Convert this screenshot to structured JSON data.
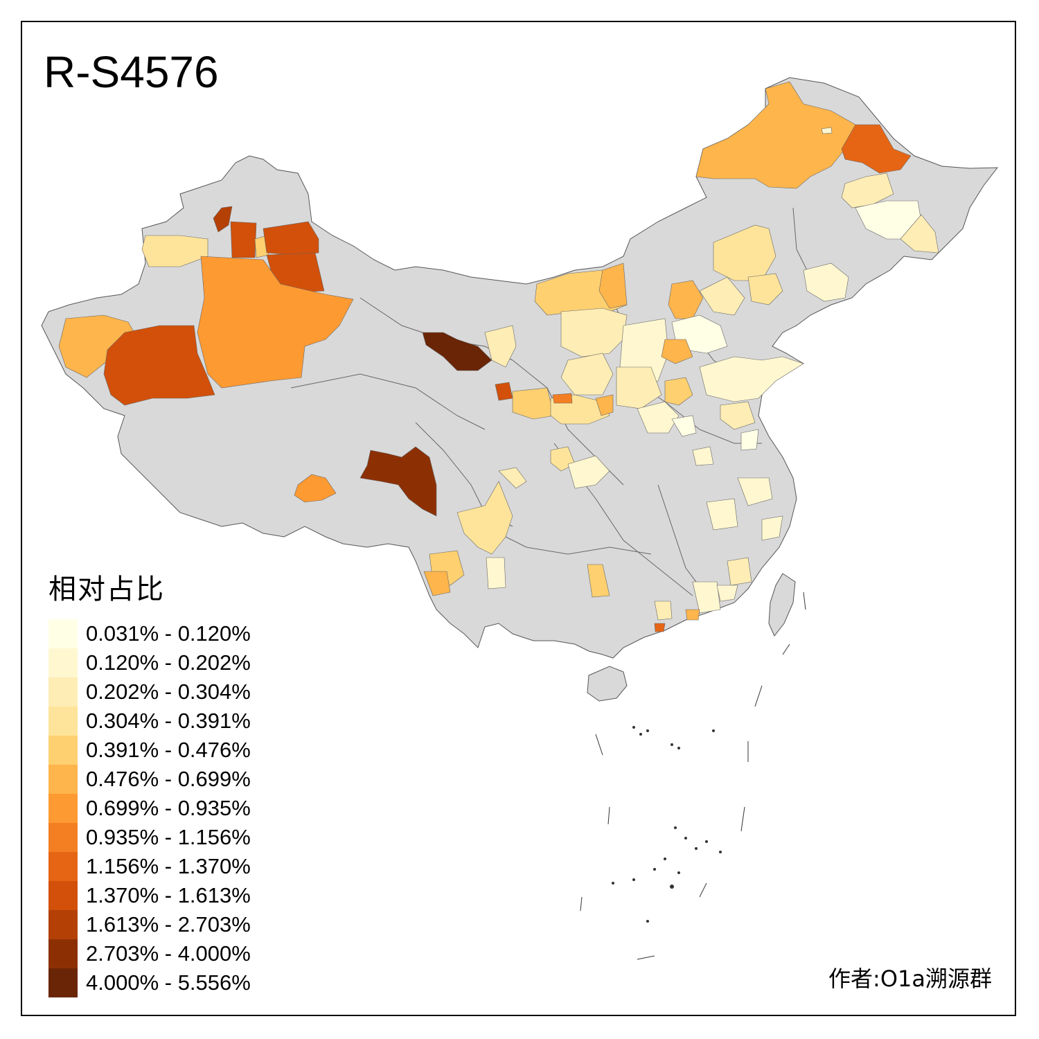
{
  "title": "R-S4576",
  "legend": {
    "title": "相对占比",
    "items": [
      {
        "label": "0.031% - 0.120%",
        "color": "#FFFFE6"
      },
      {
        "label": "0.120% - 0.202%",
        "color": "#FFF7D0"
      },
      {
        "label": "0.202% - 0.304%",
        "color": "#FEEDB4"
      },
      {
        "label": "0.304% - 0.391%",
        "color": "#FEE49A"
      },
      {
        "label": "0.391% - 0.476%",
        "color": "#FED070"
      },
      {
        "label": "0.476% - 0.699%",
        "color": "#FEB54B"
      },
      {
        "label": "0.699% - 0.935%",
        "color": "#FE9A32"
      },
      {
        "label": "0.935% - 1.156%",
        "color": "#F47F22"
      },
      {
        "label": "1.156% - 1.370%",
        "color": "#E66514"
      },
      {
        "label": "1.370% - 1.613%",
        "color": "#D2500A"
      },
      {
        "label": "1.613% - 2.703%",
        "color": "#B44006"
      },
      {
        "label": "2.703% - 4.000%",
        "color": "#8C3004"
      },
      {
        "label": "4.000% - 5.556%",
        "color": "#6A2506"
      }
    ]
  },
  "credit": "作者:O1a溯源群",
  "colors": {
    "base_region": "#D9D9D9",
    "border": "#555555",
    "frame": "#000000"
  }
}
